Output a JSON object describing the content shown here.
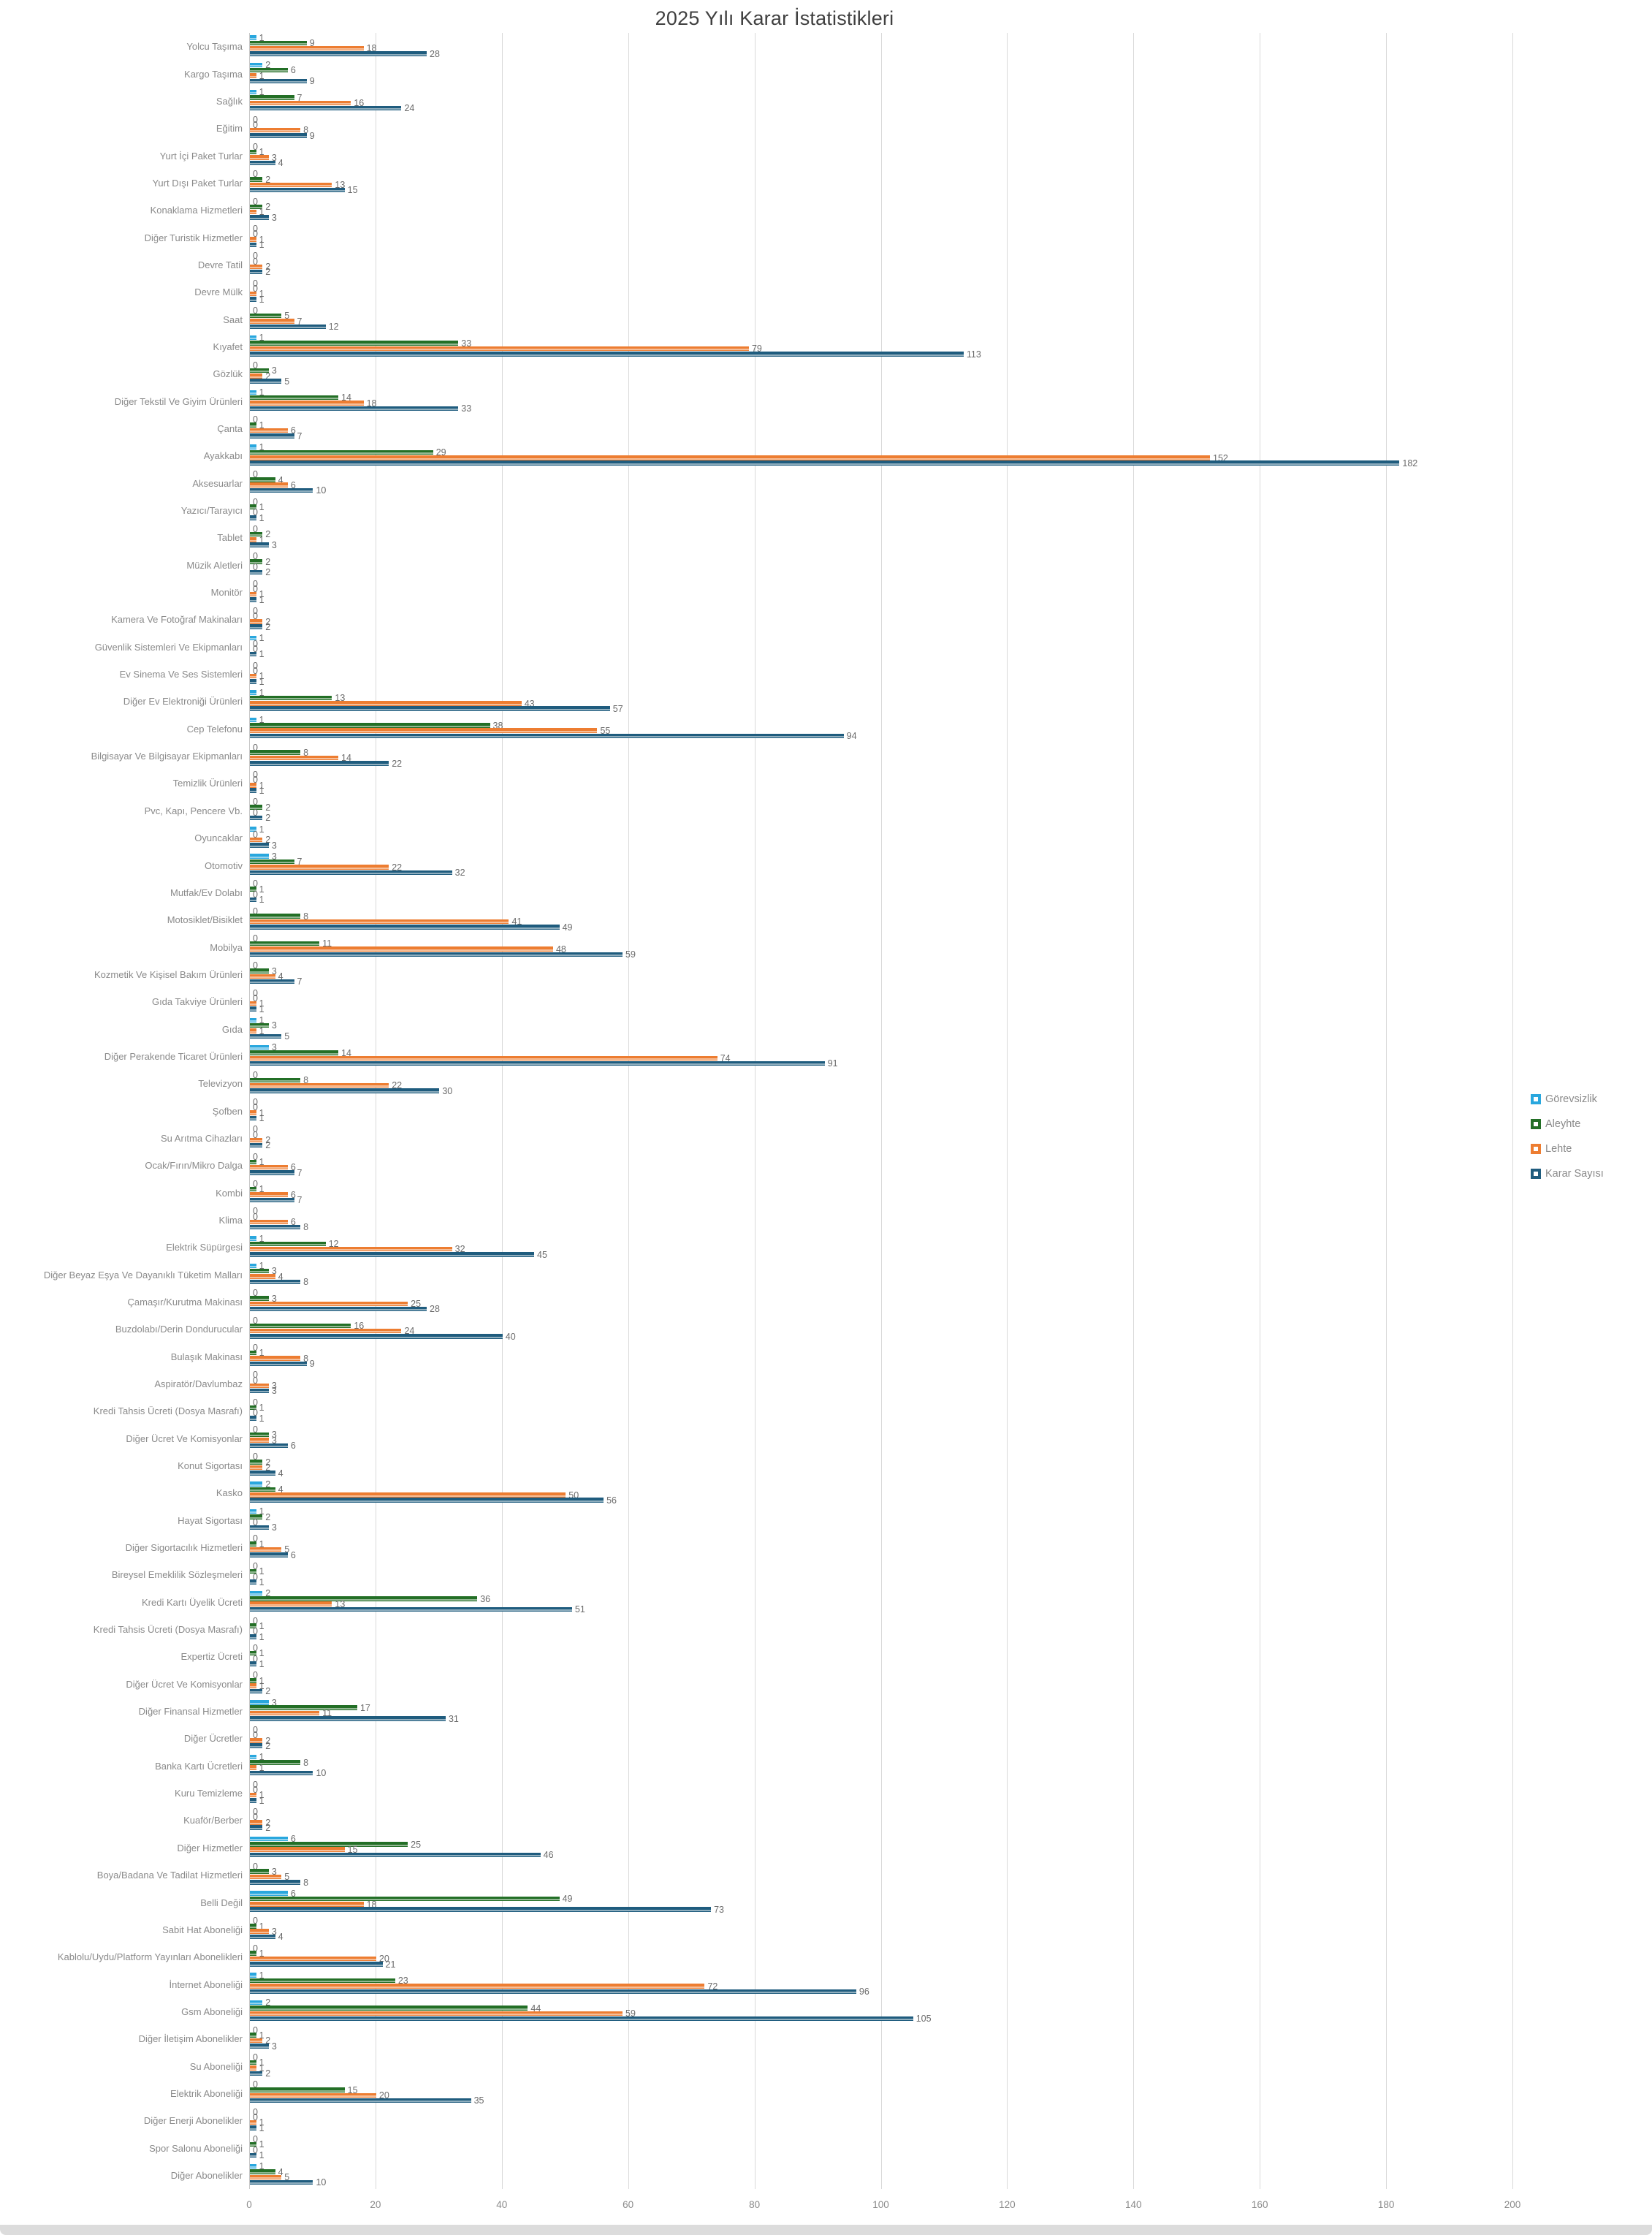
{
  "title": "2025 Yılı Karar İstatistikleri",
  "legend": {
    "position": "right",
    "items": [
      {
        "label": "Görevsizlik",
        "color": "#29A7DE"
      },
      {
        "label": "Aleyhte",
        "color": "#236F26"
      },
      {
        "label": "Lehte",
        "color": "#ED7D31"
      },
      {
        "label": "Karar Sayısı",
        "color": "#1F5C7E"
      }
    ]
  },
  "axis": {
    "min": 0,
    "max": 200,
    "step": 20,
    "tick_labels": [
      "0",
      "20",
      "40",
      "60",
      "80",
      "100",
      "120",
      "140",
      "160",
      "180",
      "200"
    ]
  },
  "chart_data": {
    "type": "bar",
    "orientation": "horizontal",
    "title": "2025 Yılı Karar İstatistikleri",
    "xlabel": "",
    "ylabel": "",
    "xlim": [
      0,
      200
    ],
    "grid": true,
    "legend_position": "right",
    "categories": [
      "Yolcu Taşıma",
      "Kargo Taşıma",
      "Sağlık",
      "Eğitim",
      "Yurt İçi Paket Turlar",
      "Yurt Dışı Paket Turlar",
      "Konaklama Hizmetleri",
      "Diğer Turistik Hizmetler",
      "Devre Tatil",
      "Devre Mülk",
      "Saat",
      "Kıyafet",
      "Gözlük",
      "Diğer Tekstil Ve Giyim Ürünleri",
      "Çanta",
      "Ayakkabı",
      "Aksesuarlar",
      "Yazıcı/Tarayıcı",
      "Tablet",
      "Müzik Aletleri",
      "Monitör",
      "Kamera Ve Fotoğraf Makinaları",
      "Güvenlik Sistemleri Ve Ekipmanları",
      "Ev Sinema Ve Ses Sistemleri",
      "Diğer Ev Elektroniği Ürünleri",
      "Cep Telefonu",
      "Bilgisayar Ve Bilgisayar Ekipmanları",
      "Temizlik Ürünleri",
      "Pvc, Kapı, Pencere Vb.",
      "Oyuncaklar",
      "Otomotiv",
      "Mutfak/Ev Dolabı",
      "Motosiklet/Bisiklet",
      "Mobilya",
      "Kozmetik Ve Kişisel Bakım Ürünleri",
      "Gıda Takviye Ürünleri",
      "Gıda",
      "Diğer Perakende Ticaret Ürünleri",
      "Televizyon",
      "Şofben",
      "Su Arıtma Cihazları",
      "Ocak/Fırın/Mikro Dalga",
      "Kombi",
      "Klima",
      "Elektrik Süpürgesi",
      "Diğer Beyaz Eşya Ve Dayanıklı Tüketim Malları",
      "Çamaşır/Kurutma Makinası",
      "Buzdolabı/Derin Dondurucular",
      "Bulaşık Makinası",
      "Aspiratör/Davlumbaz",
      "Kredi Tahsis Ücreti (Dosya Masrafı)",
      "Diğer Ücret Ve Komisyonlar",
      "Konut Sigortası",
      "Kasko",
      "Hayat Sigortası",
      "Diğer Sigortacılık Hizmetleri",
      "Bireysel Emeklilik Sözleşmeleri",
      "Kredi Kartı Üyelik Ücreti",
      "Kredi Tahsis Ücreti (Dosya Masrafı)",
      "Expertiz Ücreti",
      "Diğer Ücret Ve Komisyonlar",
      "Diğer Finansal Hizmetler",
      "Diğer Ücretler",
      "Banka Kartı Ücretleri",
      "Kuru Temizleme",
      "Kuaför/Berber",
      "Diğer Hizmetler",
      "Boya/Badana Ve Tadilat Hizmetleri",
      "Belli Değil",
      "Sabit Hat Aboneliği",
      "Kablolu/Uydu/Platform Yayınları Abonelikleri",
      "İnternet Aboneliği",
      "Gsm Aboneliği",
      "Diğer İletişim Abonelikler",
      "Su Aboneliği",
      "Elektrik Aboneliği",
      "Diğer Enerji Abonelikler",
      "Spor Salonu Aboneliği",
      "Diğer Abonelikler"
    ],
    "series": [
      {
        "name": "Görevsizlik",
        "color": "#29A7DE",
        "values": [
          1,
          2,
          1,
          0,
          0,
          0,
          0,
          0,
          0,
          0,
          0,
          1,
          0,
          1,
          0,
          1,
          0,
          0,
          0,
          0,
          0,
          0,
          1,
          0,
          1,
          1,
          0,
          0,
          0,
          1,
          3,
          0,
          0,
          0,
          0,
          0,
          1,
          3,
          0,
          0,
          0,
          0,
          0,
          0,
          1,
          1,
          0,
          0,
          0,
          0,
          0,
          0,
          0,
          2,
          1,
          0,
          0,
          2,
          0,
          0,
          0,
          3,
          0,
          1,
          0,
          0,
          6,
          0,
          6,
          0,
          0,
          1,
          2,
          0,
          0,
          0,
          0,
          0,
          1
        ]
      },
      {
        "name": "Aleyhte",
        "color": "#236F26",
        "values": [
          9,
          6,
          7,
          0,
          1,
          2,
          2,
          0,
          0,
          0,
          5,
          33,
          3,
          14,
          1,
          29,
          4,
          1,
          2,
          2,
          0,
          0,
          0,
          0,
          13,
          38,
          8,
          0,
          2,
          0,
          7,
          1,
          8,
          11,
          3,
          0,
          3,
          14,
          8,
          0,
          0,
          1,
          1,
          0,
          12,
          3,
          3,
          16,
          1,
          0,
          1,
          3,
          2,
          4,
          2,
          1,
          1,
          36,
          1,
          1,
          1,
          17,
          0,
          8,
          0,
          0,
          25,
          3,
          49,
          1,
          1,
          23,
          44,
          1,
          1,
          15,
          0,
          1,
          4
        ]
      },
      {
        "name": "Lehte",
        "color": "#ED7D31",
        "values": [
          18,
          1,
          16,
          8,
          3,
          13,
          1,
          1,
          2,
          1,
          7,
          79,
          2,
          18,
          6,
          152,
          6,
          0,
          1,
          0,
          1,
          2,
          0,
          1,
          43,
          55,
          14,
          1,
          0,
          2,
          22,
          0,
          41,
          48,
          4,
          1,
          1,
          74,
          22,
          1,
          2,
          6,
          6,
          6,
          32,
          4,
          25,
          24,
          8,
          3,
          0,
          3,
          2,
          50,
          0,
          5,
          0,
          13,
          0,
          0,
          1,
          11,
          2,
          1,
          1,
          2,
          15,
          5,
          18,
          3,
          20,
          72,
          59,
          2,
          1,
          20,
          1,
          0,
          5
        ]
      },
      {
        "name": "Karar Sayısı",
        "color": "#1F5C7E",
        "values": [
          28,
          9,
          24,
          9,
          4,
          15,
          3,
          1,
          2,
          1,
          12,
          113,
          5,
          33,
          7,
          182,
          10,
          1,
          3,
          2,
          1,
          2,
          1,
          1,
          57,
          94,
          22,
          1,
          2,
          3,
          32,
          1,
          49,
          59,
          7,
          1,
          5,
          91,
          30,
          1,
          2,
          7,
          7,
          8,
          45,
          8,
          28,
          40,
          9,
          3,
          1,
          6,
          4,
          56,
          3,
          6,
          1,
          51,
          1,
          1,
          2,
          31,
          2,
          10,
          1,
          2,
          46,
          8,
          73,
          4,
          21,
          96,
          105,
          3,
          2,
          35,
          1,
          1,
          10
        ]
      }
    ]
  }
}
